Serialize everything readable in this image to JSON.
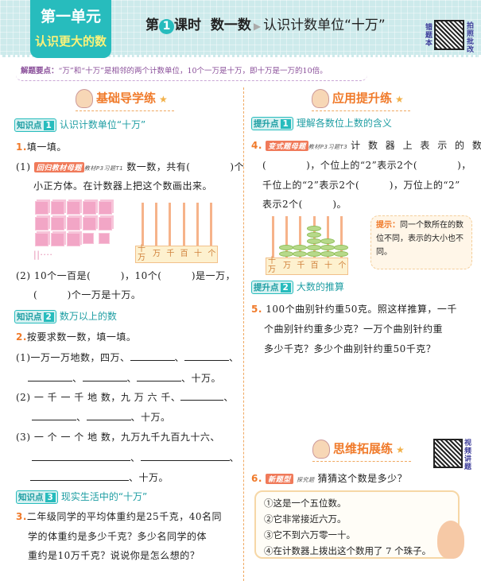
{
  "header": {
    "unit_label": "第一单元",
    "unit_title": "认识更大的数",
    "lesson_prefix": "第",
    "lesson_number": "1",
    "lesson_suffix": "课时",
    "lesson_name": "数一数",
    "lesson_topic": "认识计数单位“十万”",
    "qr_left_label": "错题本",
    "qr_right_label": "拍照批改"
  },
  "tip": {
    "label": "解题要点：",
    "text": "“万”和“十万”是相邻的两个计数单位，10个一万是十万，即十万是一万的10倍。"
  },
  "left": {
    "section": "基础导学练",
    "kp1": {
      "tag": "知识点",
      "num": "1",
      "title": "认识计数单位“十万”"
    },
    "q1": {
      "num": "1.",
      "title": "填一填。",
      "p1_prefix": "(1)",
      "p1_badge": "回归教材母题",
      "p1_src": "教材P3习题T1",
      "p1_a": "数一数，共有(　　　　)个",
      "p1_b": "小正方体。在计数器上把这个数画出来。",
      "tally": "||····",
      "abacus_labels": [
        "十万",
        "万",
        "千",
        "百",
        "十",
        "个"
      ],
      "p2_a": "(2) 10个一百是(　　　)，10个(　　　)是一万，",
      "p2_b": "(　　　)个一万是十万。"
    },
    "kp2": {
      "tag": "知识点",
      "num": "2",
      "title": "数万以上的数"
    },
    "q2": {
      "num": "2.",
      "title": "按要求数一数，填一填。",
      "p1_a": "(1)一万一万地数，四万、",
      "p1_end": "十万。",
      "p2_a": "(2) 一 千 一 千 地 数，九 万 六 千、",
      "p2_end": "十万。",
      "p3_a": "(3) 一 个 一 个 地 数，九万九千九百九十六、",
      "p3_end": "十万。"
    },
    "kp3": {
      "tag": "知识点",
      "num": "3",
      "title": "现实生活中的“十万”"
    },
    "q3": {
      "num": "3.",
      "lines": [
        "二年级同学的平均体重约是25千克，40名同",
        "学的体重约是多少千克？多少名同学的体",
        "重约是10万千克？说说你是怎么想的？"
      ]
    }
  },
  "right": {
    "section": "应用提升练",
    "tp1": {
      "tag": "提升点",
      "num": "1",
      "title": "理解各数位上数的含义"
    },
    "q4": {
      "num": "4.",
      "badge": "变式题母题",
      "src": "教材P3习题T3",
      "lines": [
        "计 数 器 上 表 示 的 数 是",
        "(　　　　)，个位上的“2”表示2个(　　　　)，",
        "千位上的“2”表示2个(　　　)，万位上的“2”",
        "表示2个(　　　)。"
      ],
      "abacus_labels": [
        "十万",
        "万",
        "千",
        "百",
        "十",
        "个"
      ],
      "beads": [
        0,
        2,
        2,
        5,
        3,
        2
      ]
    },
    "hint": {
      "label": "提示：",
      "text": "同一个数所在的数位不同，表示的大小也不同。"
    },
    "tp2": {
      "tag": "提升点",
      "num": "2",
      "title": "大数的推算"
    },
    "q5": {
      "num": "5.",
      "lines": [
        "100个曲别针约重50克。照这样推算，一千",
        "个曲别针约重多少克？一万个曲别针约重",
        "多少千克？多少个曲别针约重50千克？"
      ]
    },
    "section2": "思维拓展练",
    "qr_label": "视频讲题",
    "q6": {
      "num": "6.",
      "badge": "新题型",
      "src": "探究题",
      "title": "猜猜这个数是多少？",
      "clues": [
        "①这是一个五位数。",
        "②它非常接近六万。",
        "③它不到六万零一十。",
        "④在计数器上拨出这个数用了 7 个珠子。"
      ]
    }
  },
  "colors": {
    "teal": "#27bcbd",
    "orange": "#f07a2a",
    "header_bg": "#cdeaeb"
  }
}
